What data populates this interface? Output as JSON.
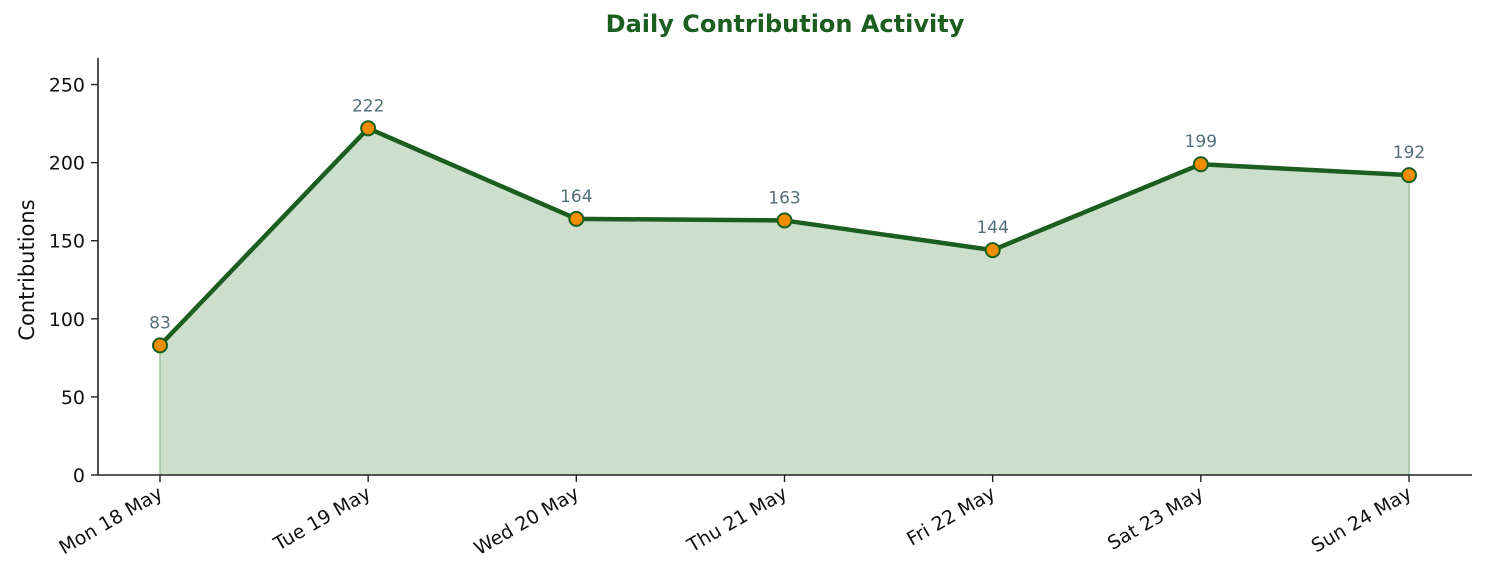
{
  "chart_data": {
    "type": "area",
    "title": "Daily Contribution Activity",
    "xlabel": "",
    "ylabel": "Contributions",
    "categories": [
      "Mon 18 May",
      "Tue 19 May",
      "Wed 20 May",
      "Thu 21 May",
      "Fri 22 May",
      "Sat 23 May",
      "Sun 24 May"
    ],
    "values": [
      83,
      222,
      164,
      163,
      144,
      199,
      192
    ],
    "ylim": [
      0,
      267
    ],
    "yticks": [
      0,
      50,
      100,
      150,
      200,
      250
    ],
    "grid": false,
    "legend": "none",
    "data_labels": true,
    "colors": {
      "title": "#1b5e20",
      "line": "#1b5e20",
      "fill": "#cbdfcc",
      "fill_edge": "#9cc39e",
      "marker_face": "#f28c00",
      "marker_edge": "#1b5e20",
      "data_label": "#546e7a",
      "axis": "#222222",
      "tick_label": "#111111"
    }
  }
}
